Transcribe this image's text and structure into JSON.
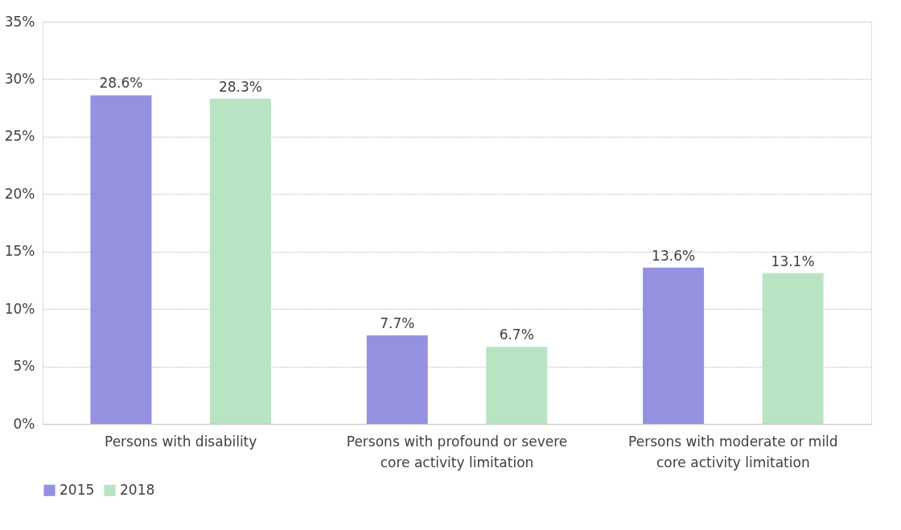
{
  "chart_data": {
    "type": "bar",
    "categories": [
      "Persons with disability",
      "Persons with profound or severe core activity limitation",
      "Persons with moderate or mild core activity limitation"
    ],
    "series": [
      {
        "name": "2015",
        "color": "#9591e0",
        "values": [
          28.6,
          7.7,
          13.6
        ],
        "value_labels": [
          "28.6%",
          "7.7%",
          "13.6%"
        ]
      },
      {
        "name": "2018",
        "color": "#b9e4c4",
        "values": [
          28.3,
          6.7,
          13.1
        ],
        "value_labels": [
          "28.3%",
          "6.7%",
          "13.1%"
        ]
      }
    ],
    "ylim": [
      0,
      35
    ],
    "yticks": [
      {
        "value": 0,
        "label": "0%"
      },
      {
        "value": 5,
        "label": "5%"
      },
      {
        "value": 10,
        "label": "10%"
      },
      {
        "value": 15,
        "label": "15%"
      },
      {
        "value": 20,
        "label": "20%"
      },
      {
        "value": 25,
        "label": "25%"
      },
      {
        "value": 30,
        "label": "30%"
      },
      {
        "value": 35,
        "label": "35%"
      }
    ],
    "grid": "y",
    "legend": "bottom"
  }
}
